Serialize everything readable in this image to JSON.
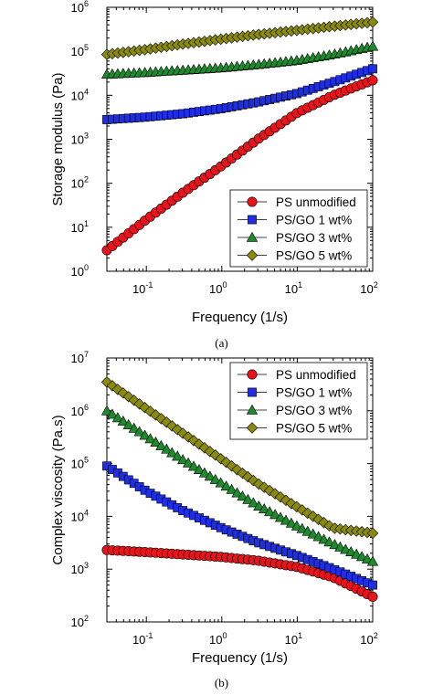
{
  "colors": {
    "PS unmodified": "#e8141b",
    "PS/GO 1 wt%": "#1f2ee0",
    "PS/GO 3 wt%": "#1e8a2e",
    "PS/GO 5 wt%": "#8a8a10"
  },
  "chart_data": [
    {
      "type": "scatter",
      "caption": "(a)",
      "xlabel": "Frequency (1/s)",
      "ylabel": "Storage modulus (Pa)",
      "xscale": "log",
      "yscale": "log",
      "xlim": [
        0.03,
        100
      ],
      "ylim": [
        1,
        1000000
      ],
      "x_ticks": [
        "10",
        "10",
        "10",
        "10"
      ],
      "x_tick_exponents": [
        "-1",
        "0",
        "1",
        "2"
      ],
      "y_ticks": [
        "10",
        "10",
        "10",
        "10",
        "10",
        "10",
        "10"
      ],
      "y_tick_exponents": [
        "0",
        "1",
        "2",
        "3",
        "4",
        "5",
        "6"
      ],
      "legend_position": "bottom-right",
      "series": [
        {
          "name": "PS unmodified",
          "marker": "circle",
          "x_range": [
            0.03,
            100
          ],
          "points": 50,
          "curve": [
            [
              0.03,
              3
            ],
            [
              0.1,
              15
            ],
            [
              0.3,
              60
            ],
            [
              1,
              250
            ],
            [
              3,
              1000
            ],
            [
              10,
              4000
            ],
            [
              30,
              10000
            ],
            [
              100,
              22000
            ]
          ]
        },
        {
          "name": "PS/GO 1 wt%",
          "marker": "square",
          "x_range": [
            0.03,
            100
          ],
          "points": 50,
          "curve": [
            [
              0.03,
              2800
            ],
            [
              0.1,
              3200
            ],
            [
              0.3,
              3800
            ],
            [
              1,
              5000
            ],
            [
              3,
              7000
            ],
            [
              10,
              11000
            ],
            [
              30,
              20000
            ],
            [
              100,
              40000
            ]
          ]
        },
        {
          "name": "PS/GO 3 wt%",
          "marker": "triangle",
          "x_range": [
            0.03,
            100
          ],
          "points": 50,
          "curve": [
            [
              0.03,
              30000
            ],
            [
              0.1,
              33000
            ],
            [
              0.3,
              37000
            ],
            [
              1,
              42000
            ],
            [
              3,
              50000
            ],
            [
              10,
              62000
            ],
            [
              30,
              85000
            ],
            [
              100,
              130000
            ]
          ]
        },
        {
          "name": "PS/GO 5 wt%",
          "marker": "diamond",
          "x_range": [
            0.03,
            100
          ],
          "points": 50,
          "curve": [
            [
              0.03,
              85000
            ],
            [
              0.1,
              110000
            ],
            [
              0.3,
              145000
            ],
            [
              1,
              190000
            ],
            [
              3,
              240000
            ],
            [
              10,
              300000
            ],
            [
              30,
              370000
            ],
            [
              100,
              460000
            ]
          ]
        }
      ]
    },
    {
      "type": "scatter",
      "caption": "(b)",
      "xlabel": "Frequency (1/s)",
      "ylabel": "Complex viscosity (Pa.s)",
      "xscale": "log",
      "yscale": "log",
      "xlim": [
        0.03,
        100
      ],
      "ylim": [
        100,
        10000000
      ],
      "x_ticks": [
        "10",
        "10",
        "10",
        "10"
      ],
      "x_tick_exponents": [
        "-1",
        "0",
        "1",
        "2"
      ],
      "y_ticks": [
        "10",
        "10",
        "10",
        "10",
        "10",
        "10"
      ],
      "y_tick_exponents": [
        "2",
        "3",
        "4",
        "5",
        "6",
        "7"
      ],
      "legend_position": "top-right",
      "series": [
        {
          "name": "PS unmodified",
          "marker": "circle",
          "x_range": [
            0.03,
            100
          ],
          "points": 50,
          "curve": [
            [
              0.03,
              2300
            ],
            [
              0.1,
              2100
            ],
            [
              0.3,
              1900
            ],
            [
              1,
              1700
            ],
            [
              3,
              1450
            ],
            [
              10,
              1100
            ],
            [
              30,
              700
            ],
            [
              100,
              300
            ]
          ]
        },
        {
          "name": "PS/GO 1 wt%",
          "marker": "square",
          "x_range": [
            0.03,
            100
          ],
          "points": 50,
          "curve": [
            [
              0.03,
              90000
            ],
            [
              0.1,
              30000
            ],
            [
              0.3,
              13000
            ],
            [
              1,
              6000
            ],
            [
              3,
              3200
            ],
            [
              10,
              1800
            ],
            [
              30,
              1000
            ],
            [
              100,
              500
            ]
          ]
        },
        {
          "name": "PS/GO 3 wt%",
          "marker": "triangle",
          "x_range": [
            0.03,
            100
          ],
          "points": 50,
          "curve": [
            [
              0.03,
              1000000
            ],
            [
              0.1,
              330000
            ],
            [
              0.3,
              120000
            ],
            [
              1,
              42000
            ],
            [
              3,
              16000
            ],
            [
              10,
              6500
            ],
            [
              30,
              3000
            ],
            [
              100,
              1400
            ]
          ]
        },
        {
          "name": "PS/GO 5 wt%",
          "marker": "diamond",
          "x_range": [
            0.03,
            100
          ],
          "points": 50,
          "curve": [
            [
              0.03,
              3500000
            ],
            [
              0.1,
              1100000
            ],
            [
              0.3,
              380000
            ],
            [
              1,
              120000
            ],
            [
              3,
              42000
            ],
            [
              10,
              15000
            ],
            [
              30,
              6000
            ],
            [
              100,
              4800
            ]
          ]
        }
      ]
    }
  ]
}
